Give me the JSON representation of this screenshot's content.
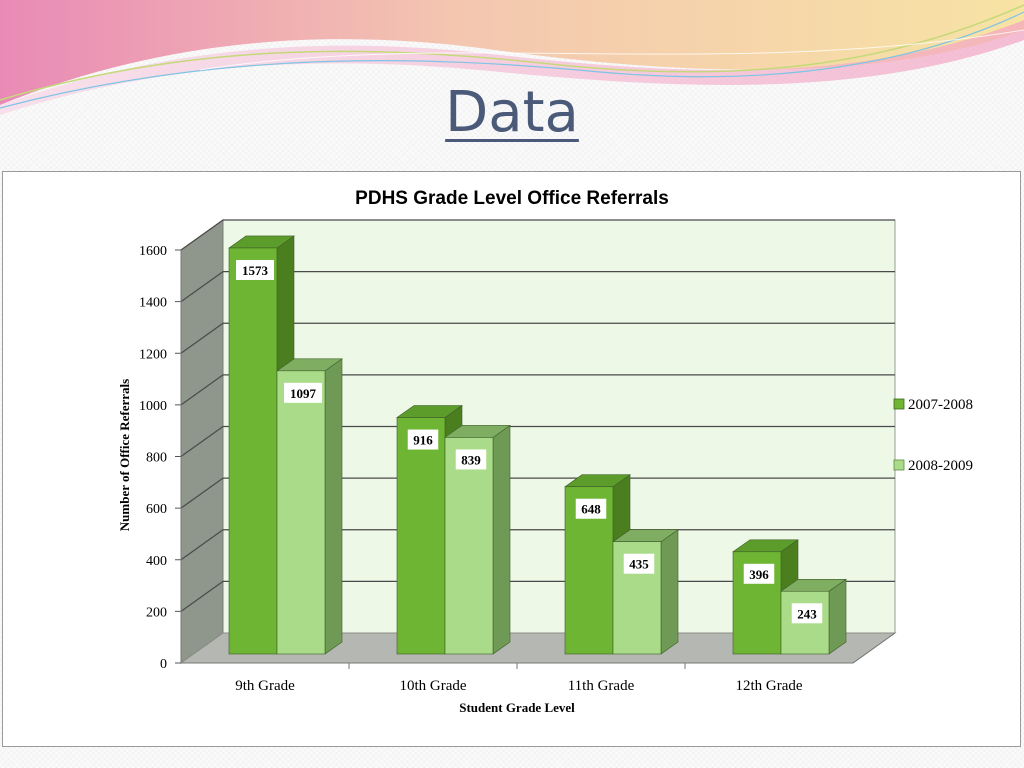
{
  "slide": {
    "title": "Data"
  },
  "colors": {
    "series1_front": "#6db533",
    "series1_side": "#4a7e1f",
    "series1_top": "#5c9c2a",
    "series2_front": "#aadb88",
    "series2_side": "#6f9a55",
    "series2_top": "#7fae62",
    "plot_back": "#eef8e6",
    "side_wall": "#8f968b",
    "floor": "#b5b8b2"
  },
  "chart_data": {
    "type": "bar",
    "title": "PDHS Grade Level Office Referrals",
    "xlabel": "Student Grade Level",
    "ylabel": "Number of Office Referrals",
    "categories": [
      "9th Grade",
      "10th Grade",
      "11th Grade",
      "12th Grade"
    ],
    "series": [
      {
        "name": "2007-2008",
        "values": [
          1573,
          916,
          648,
          396
        ]
      },
      {
        "name": "2008-2009",
        "values": [
          1097,
          839,
          435,
          243
        ]
      }
    ],
    "ylim": [
      0,
      1600
    ],
    "yticks": [
      0,
      200,
      400,
      600,
      800,
      1000,
      1200,
      1400,
      1600
    ],
    "grid": true,
    "legend": "right",
    "style": "3d-clustered-column"
  }
}
